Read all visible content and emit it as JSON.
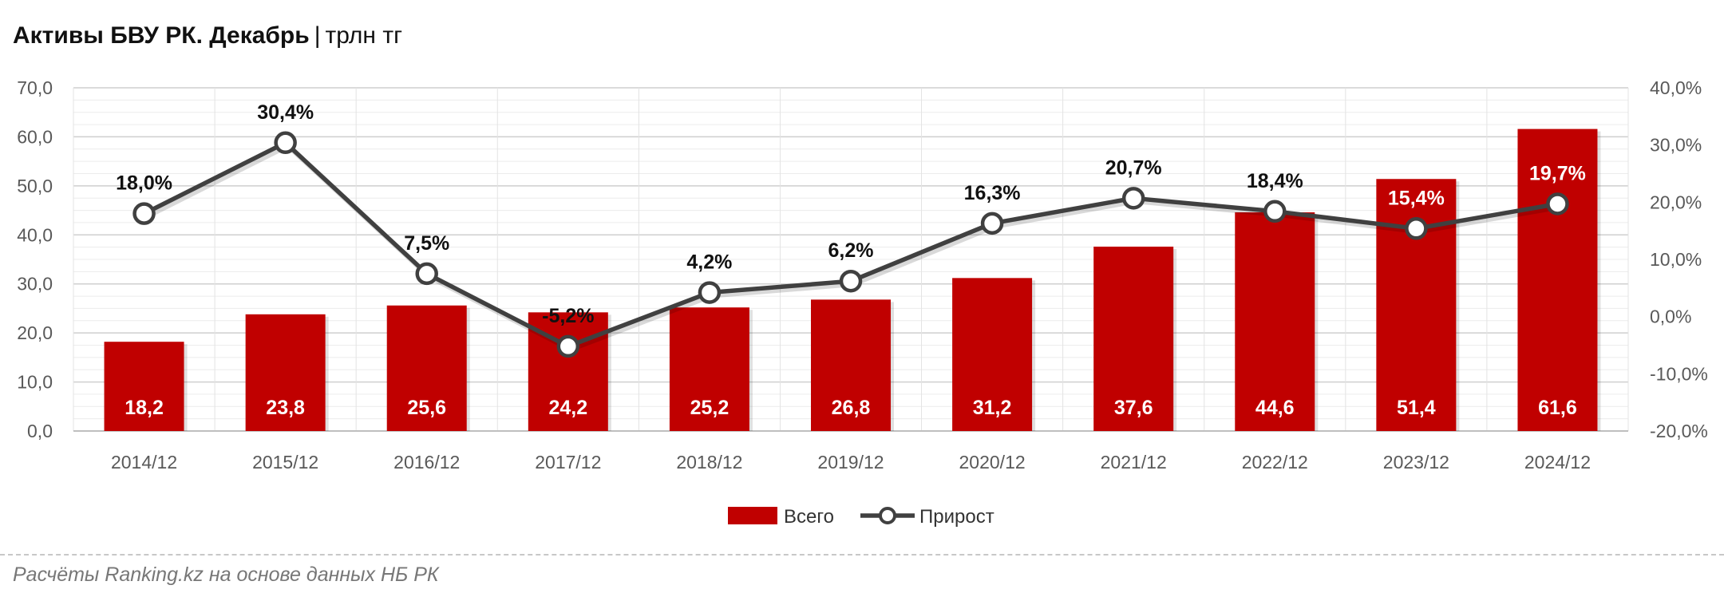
{
  "header": {
    "title_bold": "Активы БВУ РК. Декабрь",
    "separator": "|",
    "unit": "трлн тг"
  },
  "footer": {
    "source": "Расчёты Ranking.kz на основе данных НБ РК"
  },
  "colors": {
    "bar": "#c00000",
    "line": "#404040",
    "marker_fill": "#ffffff",
    "grid": "#d9d9d9"
  },
  "chart_data": {
    "type": "bar",
    "categories": [
      "2014/12",
      "2015/12",
      "2016/12",
      "2017/12",
      "2018/12",
      "2019/12",
      "2020/12",
      "2021/12",
      "2022/12",
      "2023/12",
      "2024/12"
    ],
    "series": [
      {
        "name": "Всего",
        "type": "bar",
        "axis": "left",
        "values": [
          18.2,
          23.8,
          25.6,
          24.2,
          25.2,
          26.8,
          31.2,
          37.6,
          44.6,
          51.4,
          61.6
        ],
        "labels": [
          "18,2",
          "23,8",
          "25,6",
          "24,2",
          "25,2",
          "26,8",
          "31,2",
          "37,6",
          "44,6",
          "51,4",
          "61,6"
        ]
      },
      {
        "name": "Прирост",
        "type": "line",
        "axis": "right",
        "values": [
          18.0,
          30.4,
          7.5,
          -5.2,
          4.2,
          6.2,
          16.3,
          20.7,
          18.4,
          15.4,
          19.7
        ],
        "labels": [
          "18,0%",
          "30,4%",
          "7,5%",
          "-5,2%",
          "4,2%",
          "6,2%",
          "16,3%",
          "20,7%",
          "18,4%",
          "15,4%",
          "19,7%"
        ]
      }
    ],
    "y_left": {
      "min": 0,
      "max": 70,
      "ticks": [
        "0,0",
        "10,0",
        "20,0",
        "30,0",
        "40,0",
        "50,0",
        "60,0",
        "70,0"
      ]
    },
    "y_right": {
      "min": -20,
      "max": 40,
      "ticks": [
        "-20,0%",
        "-10,0%",
        "0,0%",
        "10,0%",
        "20,0%",
        "30,0%",
        "40,0%"
      ]
    },
    "grid": true,
    "legend": {
      "position": "bottom",
      "entries": [
        "Всего",
        "Прирост"
      ]
    }
  }
}
